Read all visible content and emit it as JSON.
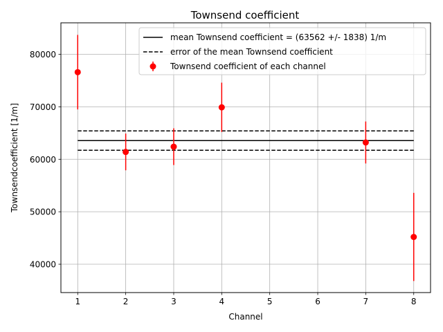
{
  "chart_data": {
    "type": "scatter",
    "title": "Townsend coefficient",
    "xlabel": "Channel",
    "ylabel": "Townsendcoefficient [1/m]",
    "xlim": [
      0.65,
      8.35
    ],
    "ylim": [
      34600,
      86000
    ],
    "xticks": [
      1,
      2,
      3,
      4,
      5,
      6,
      7,
      8
    ],
    "yticks": [
      40000,
      50000,
      60000,
      70000,
      80000
    ],
    "grid": true,
    "legend_position": "top-right",
    "mean": 63562,
    "mean_error": 1838,
    "mean_line_x": [
      1,
      8
    ],
    "series": [
      {
        "name": "Townsend coefficient of each channel",
        "color": "#ff0000",
        "points": [
          {
            "x": 1,
            "y": 76600,
            "yerr": 7100
          },
          {
            "x": 2,
            "y": 61400,
            "yerr": 3500
          },
          {
            "x": 3,
            "y": 62400,
            "yerr": 3500
          },
          {
            "x": 4,
            "y": 69900,
            "yerr": 4700
          },
          {
            "x": 7,
            "y": 63200,
            "yerr": 4000
          },
          {
            "x": 8,
            "y": 45200,
            "yerr": 8400
          }
        ]
      }
    ],
    "legend": [
      {
        "label": "mean Townsend coefficient = (63562 +/- 1838) 1/m",
        "style": "solid"
      },
      {
        "label": "error of the mean Townsend coefficient",
        "style": "dashed"
      },
      {
        "label": "Townsend coefficient of each channel",
        "style": "errorbar"
      }
    ]
  }
}
